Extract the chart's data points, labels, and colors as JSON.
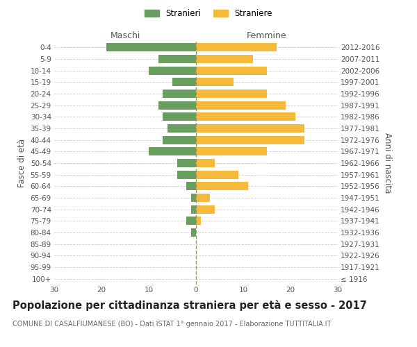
{
  "age_groups": [
    "100+",
    "95-99",
    "90-94",
    "85-89",
    "80-84",
    "75-79",
    "70-74",
    "65-69",
    "60-64",
    "55-59",
    "50-54",
    "45-49",
    "40-44",
    "35-39",
    "30-34",
    "25-29",
    "20-24",
    "15-19",
    "10-14",
    "5-9",
    "0-4"
  ],
  "birth_years": [
    "≤ 1916",
    "1917-1921",
    "1922-1926",
    "1927-1931",
    "1932-1936",
    "1937-1941",
    "1942-1946",
    "1947-1951",
    "1952-1956",
    "1957-1961",
    "1962-1966",
    "1967-1971",
    "1972-1976",
    "1977-1981",
    "1982-1986",
    "1987-1991",
    "1992-1996",
    "1997-2001",
    "2002-2006",
    "2007-2011",
    "2012-2016"
  ],
  "males": [
    0,
    0,
    0,
    0,
    1,
    2,
    1,
    1,
    2,
    4,
    4,
    10,
    7,
    6,
    7,
    8,
    7,
    5,
    10,
    8,
    19
  ],
  "females": [
    0,
    0,
    0,
    0,
    0,
    1,
    4,
    3,
    11,
    9,
    4,
    15,
    23,
    23,
    21,
    19,
    15,
    8,
    15,
    12,
    17
  ],
  "male_color": "#6a9e5e",
  "female_color": "#f5ba3a",
  "background_color": "#ffffff",
  "grid_color": "#cccccc",
  "title": "Popolazione per cittadinanza straniera per età e sesso - 2017",
  "subtitle": "COMUNE DI CASALFIUMANESE (BO) - Dati ISTAT 1° gennaio 2017 - Elaborazione TUTTITALIA.IT",
  "xlabel_left": "Maschi",
  "xlabel_right": "Femmine",
  "ylabel_left": "Fasce di età",
  "ylabel_right": "Anni di nascita",
  "xlim": 30,
  "legend_stranieri": "Stranieri",
  "legend_straniere": "Straniere",
  "title_fontsize": 10.5,
  "subtitle_fontsize": 7.0,
  "axis_label_fontsize": 8.5,
  "tick_fontsize": 7.5
}
